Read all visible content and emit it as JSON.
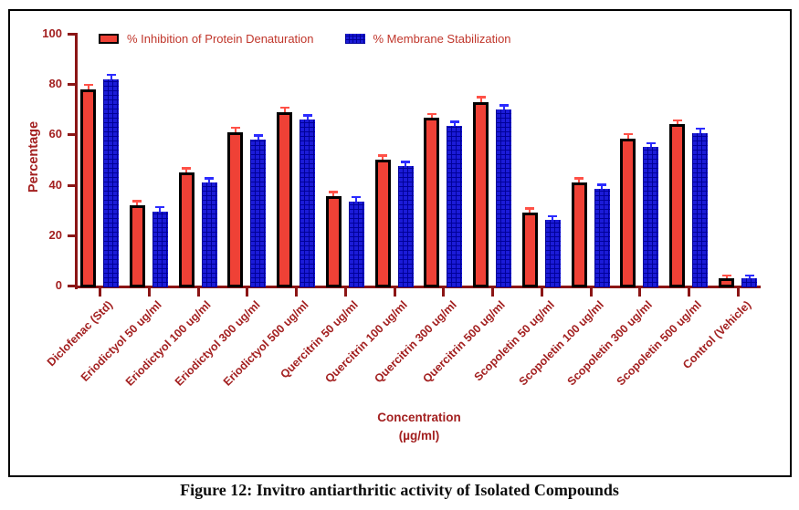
{
  "caption": "Figure 12: Invitro antiarthritic activity of Isolated Compounds",
  "colors": {
    "axis": "#8B1515",
    "axis_text": "#A32020",
    "legend_text": "#C0362B",
    "series_red_fill": "#EF4136",
    "series_red_edge": "#000000",
    "series_red_error": "#FF5147",
    "series_blue_fill": "#1B1BD8",
    "series_blue_pattern": "#000096",
    "series_blue_error": "#2B2BFF"
  },
  "chart_data": {
    "type": "bar",
    "title": "Figure 12: Invitro antiarthritic activity of Isolated Compounds",
    "ylabel": "Percentage",
    "xlabel_line1": "Concentration",
    "xlabel_line2": "(µg/ml)",
    "ylim": [
      0,
      100
    ],
    "yticks": [
      0,
      20,
      40,
      60,
      80,
      100
    ],
    "grid": false,
    "legend_position": "top-left-inside",
    "categories": [
      "Diclofenac (Std)",
      "Eriodictyol 50 ug/ml",
      "Eriodictyol 100 ug/ml",
      "Eriodictyol 300 ug/ml",
      "Eriodictyol 500 ug/ml",
      "Quercitrin 50 ug/ml",
      "Quercitrin 100 ug/ml",
      "Quercitrin 300 ug/ml",
      "Quercitrin 500 ug/ml",
      "Scopoletin 50 ug/ml",
      "Scopoletin 100 ug/ml",
      "Scopoletin 300 ug/ml",
      "Scopoletin 500 ug/ml",
      "Control (Vehicle)"
    ],
    "series": [
      {
        "name": "% Inhibition of Protein Denaturation",
        "color": "#EF4136",
        "values": [
          78,
          32,
          45,
          61,
          69,
          35.5,
          50,
          66.5,
          73,
          29,
          41,
          58.5,
          64,
          3
        ],
        "errors": [
          1.5,
          1.3,
          1.3,
          1.5,
          1.3,
          1.3,
          1.3,
          1.3,
          1.5,
          1.3,
          1.3,
          1.3,
          1.3,
          0.8
        ]
      },
      {
        "name": "% Membrane Stabilization",
        "color": "#1B1BD8",
        "values": [
          82,
          29.5,
          41,
          58,
          66,
          33.5,
          47.5,
          63.5,
          70,
          26,
          38.5,
          55,
          60.5,
          3
        ],
        "errors": [
          1.5,
          1.3,
          1.3,
          1.3,
          1.3,
          1.3,
          1.3,
          1.3,
          1.3,
          1.3,
          1.3,
          1.3,
          1.5,
          0.8
        ]
      }
    ]
  }
}
